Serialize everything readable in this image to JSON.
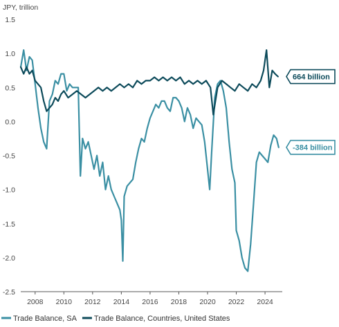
{
  "chart_data": {
    "type": "line",
    "unit_label": "JPY, trillion",
    "ylim": [
      -2.5,
      1.5
    ],
    "y_ticks": [
      "1.5",
      "1.0",
      "0.5",
      "0.0",
      "-0.5",
      "-1.0",
      "-1.5",
      "-2.0",
      "-2.5"
    ],
    "y_tick_values": [
      1.5,
      1.0,
      0.5,
      0.0,
      -0.5,
      -1.0,
      -1.5,
      -2.0,
      -2.5
    ],
    "xlim": [
      2007.0,
      2025.2
    ],
    "x_ticks": [
      "2008",
      "2010",
      "2012",
      "2014",
      "2016",
      "2018",
      "2020",
      "2022",
      "2024"
    ],
    "x_tick_values": [
      2008,
      2010,
      2012,
      2014,
      2016,
      2018,
      2020,
      2022,
      2024
    ],
    "grid": false,
    "legend_position": "bottom",
    "series": [
      {
        "name": "Trade Balance, SA",
        "color": "#3a8fa3",
        "callout": "-384 billion",
        "x": [
          2007.0,
          2007.2,
          2007.4,
          2007.6,
          2007.8,
          2008.0,
          2008.2,
          2008.4,
          2008.6,
          2008.8,
          2009.0,
          2009.2,
          2009.4,
          2009.6,
          2009.8,
          2010.0,
          2010.2,
          2010.4,
          2010.6,
          2010.8,
          2011.0,
          2011.15,
          2011.3,
          2011.5,
          2011.7,
          2011.9,
          2012.1,
          2012.3,
          2012.5,
          2012.7,
          2012.9,
          2013.1,
          2013.3,
          2013.5,
          2013.7,
          2013.9,
          2014.0,
          2014.1,
          2014.2,
          2014.4,
          2014.6,
          2014.8,
          2015.0,
          2015.2,
          2015.4,
          2015.6,
          2015.8,
          2016.0,
          2016.2,
          2016.4,
          2016.6,
          2016.8,
          2017.0,
          2017.2,
          2017.4,
          2017.6,
          2017.8,
          2018.0,
          2018.2,
          2018.4,
          2018.6,
          2018.8,
          2019.0,
          2019.2,
          2019.4,
          2019.6,
          2019.8,
          2020.0,
          2020.15,
          2020.3,
          2020.5,
          2020.7,
          2020.9,
          2021.1,
          2021.3,
          2021.5,
          2021.7,
          2021.9,
          2022.0,
          2022.2,
          2022.4,
          2022.6,
          2022.8,
          2023.0,
          2023.2,
          2023.4,
          2023.6,
          2023.8,
          2024.0,
          2024.2,
          2024.4,
          2024.6,
          2024.8,
          2024.95
        ],
        "y": [
          0.8,
          1.05,
          0.75,
          0.95,
          0.9,
          0.55,
          0.2,
          -0.1,
          -0.3,
          -0.4,
          0.3,
          0.4,
          0.6,
          0.55,
          0.7,
          0.7,
          0.45,
          0.55,
          0.5,
          0.5,
          0.5,
          -0.8,
          -0.25,
          -0.4,
          -0.3,
          -0.5,
          -0.7,
          -0.5,
          -0.8,
          -0.6,
          -1.0,
          -0.8,
          -1.0,
          -1.1,
          -1.2,
          -1.3,
          -1.45,
          -2.05,
          -1.1,
          -0.95,
          -0.9,
          -0.85,
          -0.6,
          -0.4,
          -0.25,
          -0.3,
          -0.1,
          0.05,
          0.15,
          0.25,
          0.2,
          0.3,
          0.3,
          0.2,
          0.15,
          0.35,
          0.35,
          0.3,
          0.2,
          0.0,
          0.2,
          0.1,
          -0.1,
          0.05,
          0.0,
          -0.05,
          -0.3,
          -0.7,
          -1.0,
          -0.4,
          0.35,
          0.55,
          0.6,
          0.45,
          0.2,
          -0.3,
          -0.7,
          -0.9,
          -1.6,
          -1.75,
          -2.0,
          -2.15,
          -2.2,
          -1.8,
          -1.2,
          -0.6,
          -0.45,
          -0.5,
          -0.55,
          -0.6,
          -0.35,
          -0.2,
          -0.25,
          -0.38
        ]
      },
      {
        "name": "Trade Balance, Countries, United States",
        "color": "#0c4a5a",
        "callout": "664 billion",
        "x": [
          2007.0,
          2007.2,
          2007.4,
          2007.6,
          2007.8,
          2008.0,
          2008.2,
          2008.4,
          2008.6,
          2008.8,
          2009.0,
          2009.2,
          2009.4,
          2009.6,
          2009.8,
          2010.0,
          2010.3,
          2010.6,
          2010.9,
          2011.2,
          2011.5,
          2011.8,
          2012.1,
          2012.4,
          2012.7,
          2013.0,
          2013.3,
          2013.6,
          2013.9,
          2014.2,
          2014.5,
          2014.8,
          2015.1,
          2015.4,
          2015.7,
          2016.0,
          2016.3,
          2016.6,
          2016.9,
          2017.2,
          2017.5,
          2017.8,
          2018.1,
          2018.4,
          2018.7,
          2019.0,
          2019.3,
          2019.6,
          2019.9,
          2020.2,
          2020.4,
          2020.7,
          2021.0,
          2021.3,
          2021.6,
          2021.9,
          2022.2,
          2022.5,
          2022.8,
          2023.1,
          2023.4,
          2023.7,
          2023.9,
          2024.1,
          2024.3,
          2024.5,
          2024.7,
          2024.9
        ],
        "y": [
          0.8,
          0.7,
          0.8,
          0.7,
          0.75,
          0.6,
          0.55,
          0.5,
          0.3,
          0.15,
          0.2,
          0.25,
          0.35,
          0.3,
          0.4,
          0.45,
          0.35,
          0.4,
          0.45,
          0.4,
          0.35,
          0.4,
          0.45,
          0.5,
          0.45,
          0.5,
          0.45,
          0.5,
          0.55,
          0.5,
          0.55,
          0.5,
          0.6,
          0.55,
          0.6,
          0.6,
          0.65,
          0.6,
          0.65,
          0.6,
          0.65,
          0.6,
          0.65,
          0.55,
          0.6,
          0.55,
          0.6,
          0.55,
          0.6,
          0.5,
          0.1,
          0.5,
          0.6,
          0.55,
          0.5,
          0.45,
          0.55,
          0.5,
          0.45,
          0.55,
          0.5,
          0.6,
          0.75,
          1.05,
          0.5,
          0.75,
          0.7,
          0.66
        ]
      }
    ]
  }
}
